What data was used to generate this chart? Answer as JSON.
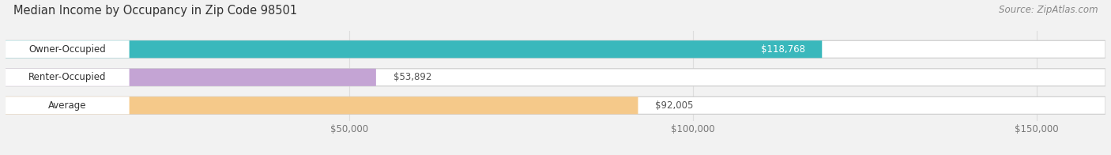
{
  "title": "Median Income by Occupancy in Zip Code 98501",
  "source": "Source: ZipAtlas.com",
  "categories": [
    "Owner-Occupied",
    "Renter-Occupied",
    "Average"
  ],
  "values": [
    118768,
    53892,
    92005
  ],
  "labels": [
    "$118,768",
    "$53,892",
    "$92,005"
  ],
  "label_inside": [
    true,
    false,
    false
  ],
  "bar_colors": [
    "#3ab8bc",
    "#c4a4d4",
    "#f5c98a"
  ],
  "background_color": "#f2f2f2",
  "bar_bg_color": "#e2e2e2",
  "xlim": [
    0,
    160000
  ],
  "xticks": [
    50000,
    100000,
    150000
  ],
  "xtick_labels": [
    "$50,000",
    "$100,000",
    "$150,000"
  ],
  "title_fontsize": 10.5,
  "source_fontsize": 8.5,
  "label_fontsize": 8.5,
  "category_fontsize": 8.5,
  "bar_height": 0.62,
  "figsize": [
    14.06,
    1.96
  ],
  "dpi": 100
}
